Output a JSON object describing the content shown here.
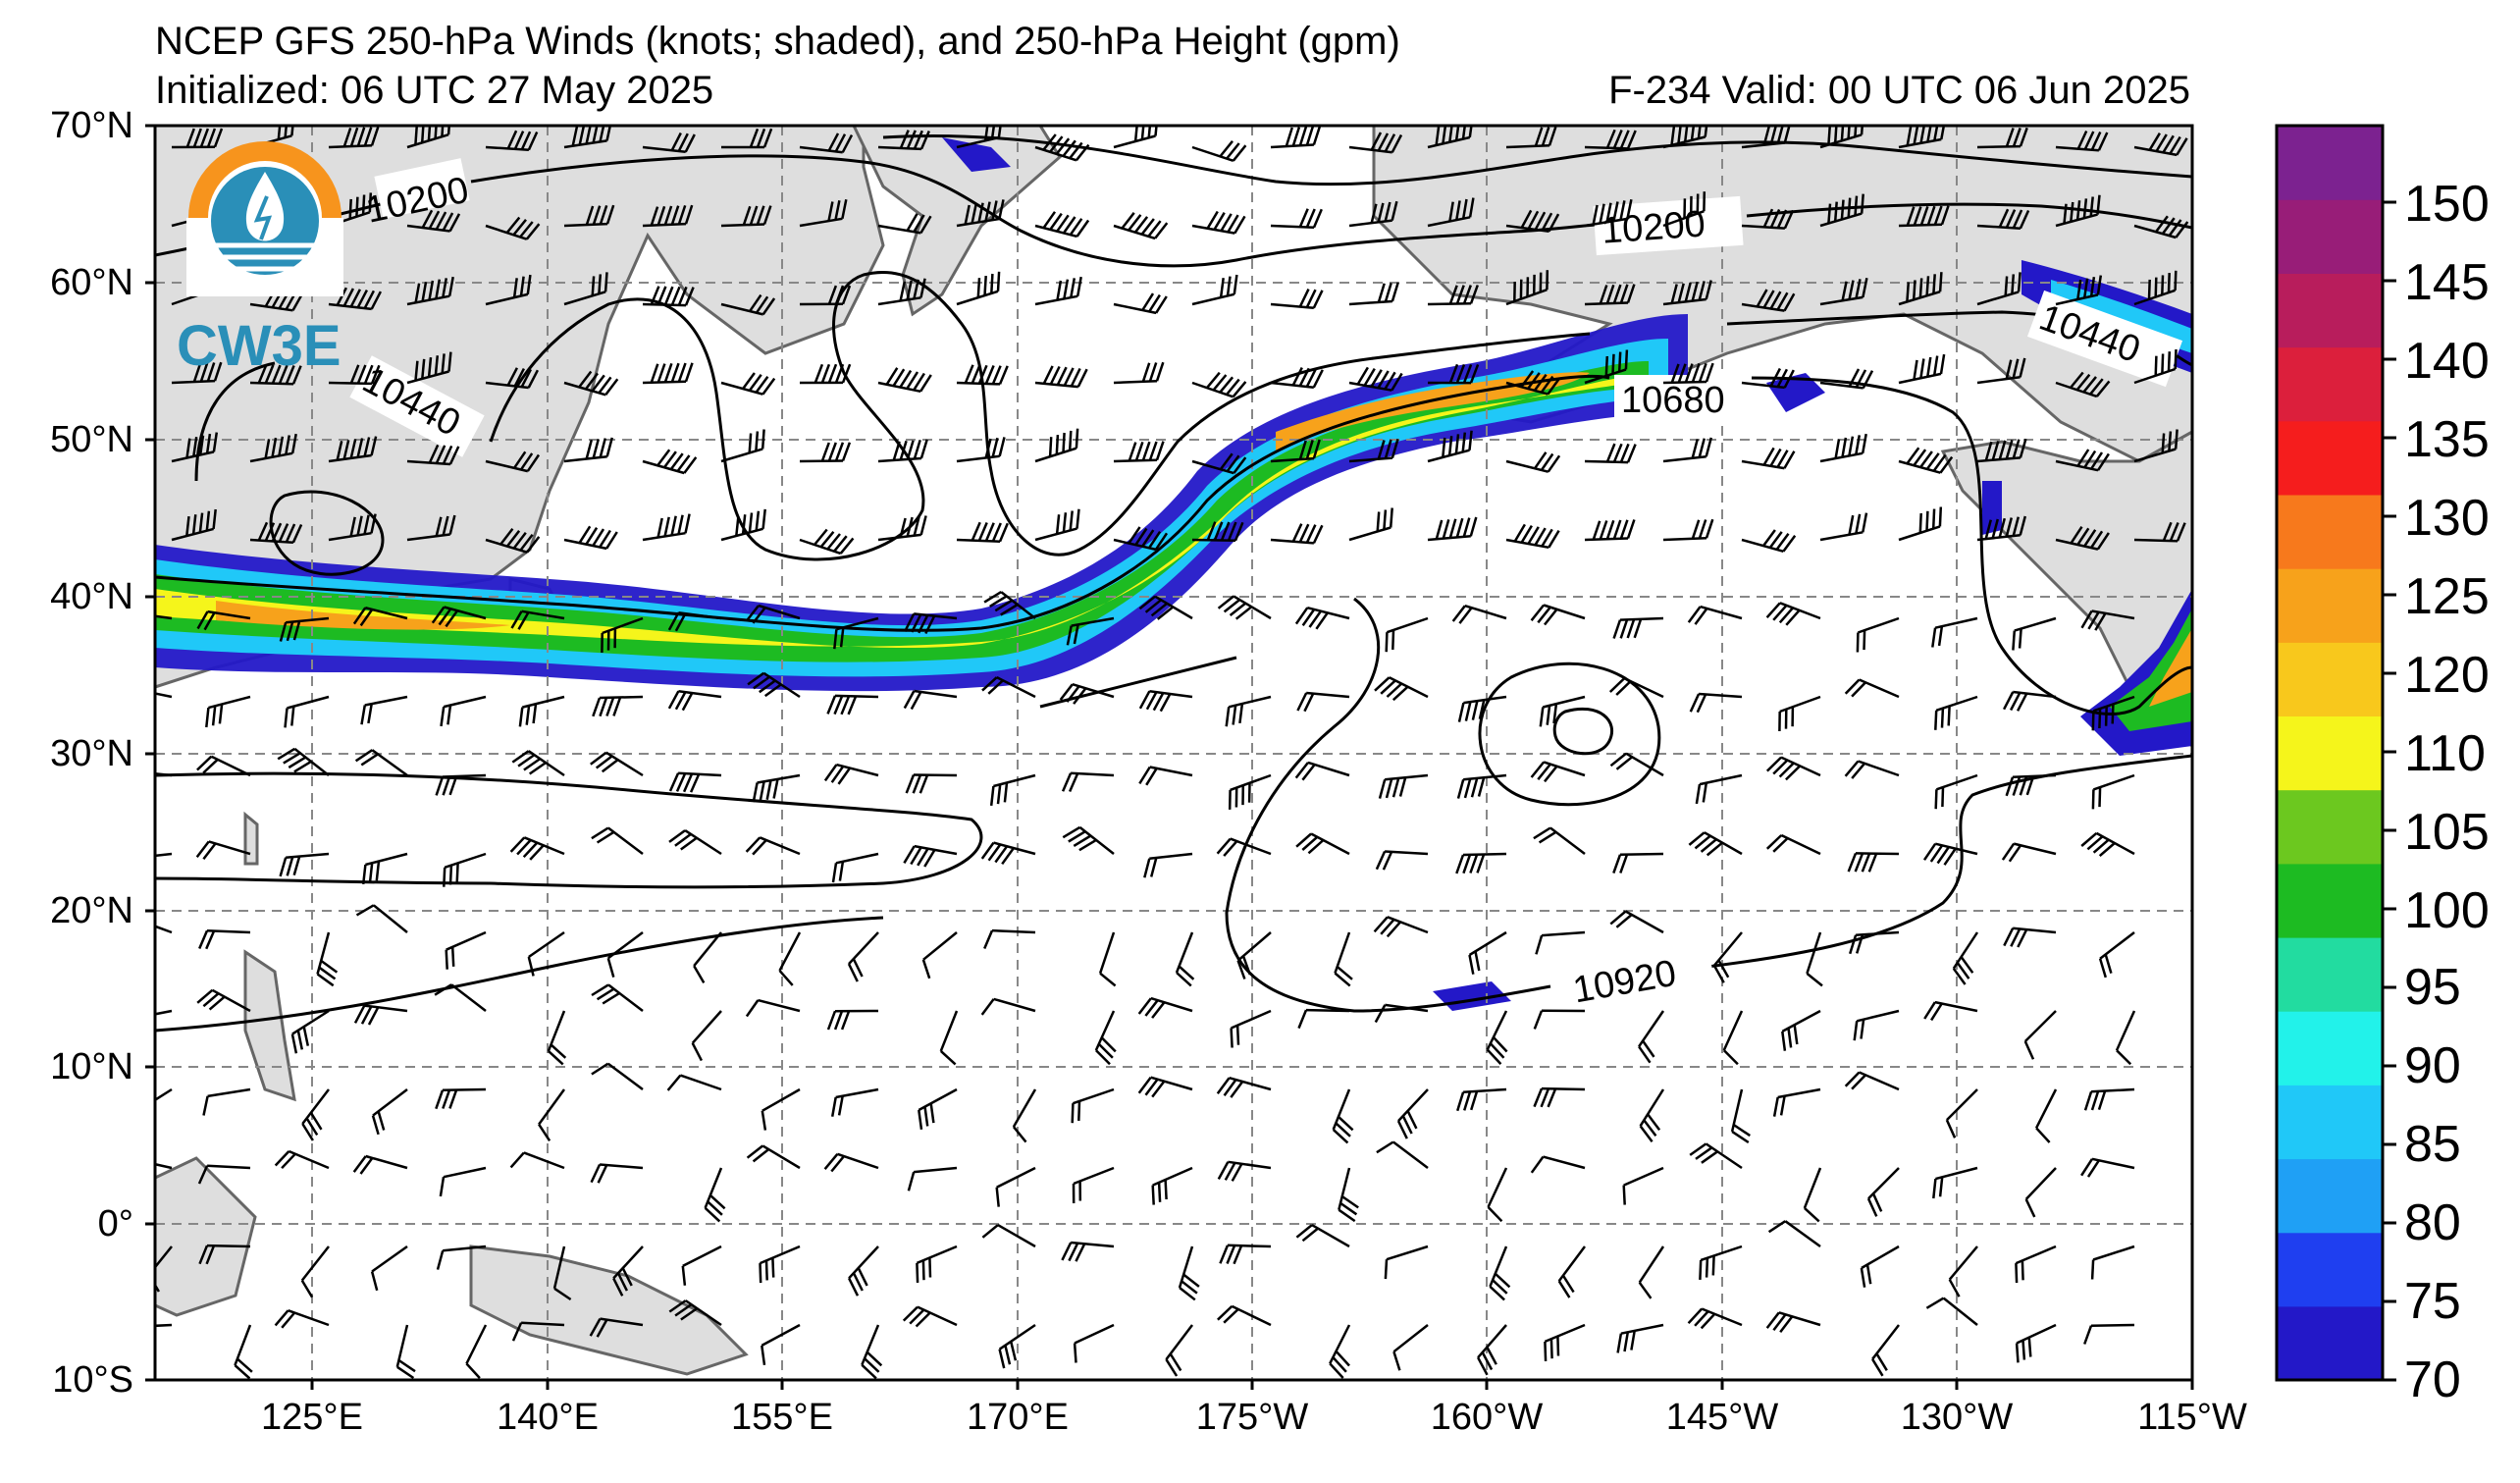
{
  "header": {
    "title": "NCEP GFS 250-hPa Winds (knots; shaded), and 250-hPa Height (gpm)",
    "initialized": "Initialized: 06 UTC 27 May 2025",
    "valid": "F-234  Valid: 00 UTC 06 Jun 2025"
  },
  "logo": {
    "text": "CW3E",
    "colors": {
      "ring": "#f7941d",
      "disc": "#2a8fb8",
      "text": "#2a8fb8"
    },
    "icon": "water-drop-lightning-icon"
  },
  "map": {
    "lat_labels": [
      "70°N",
      "60°N",
      "50°N",
      "40°N",
      "30°N",
      "20°N",
      "10°N",
      "0°",
      "10°S"
    ],
    "lon_labels": [
      "125°E",
      "140°E",
      "155°E",
      "170°E",
      "175°W",
      "160°W",
      "145°W",
      "130°W",
      "115°W"
    ],
    "contour_labels": [
      "10200",
      "10440",
      "10200",
      "10440",
      "10680",
      "10920"
    ],
    "colors": {
      "land": "#dedede",
      "coast": "#666666",
      "ocean": "#ffffff",
      "grid": "#888888",
      "contour": "#000000",
      "barb": "#000000"
    }
  },
  "colorbar": {
    "ticks": [
      "70",
      "75",
      "80",
      "85",
      "90",
      "95",
      "100",
      "105",
      "110",
      "120",
      "125",
      "130",
      "135",
      "140",
      "145",
      "150"
    ],
    "colors": [
      "#2318c8",
      "#1f3ff0",
      "#1fa0f5",
      "#20c8f8",
      "#22f2ea",
      "#22dca0",
      "#1dbb22",
      "#6cc81f",
      "#f5f51b",
      "#f8c81c",
      "#f7a21b",
      "#f7791c",
      "#f51d1d",
      "#dc1f3c",
      "#b81d5c",
      "#981d78",
      "#7c2290"
    ]
  }
}
